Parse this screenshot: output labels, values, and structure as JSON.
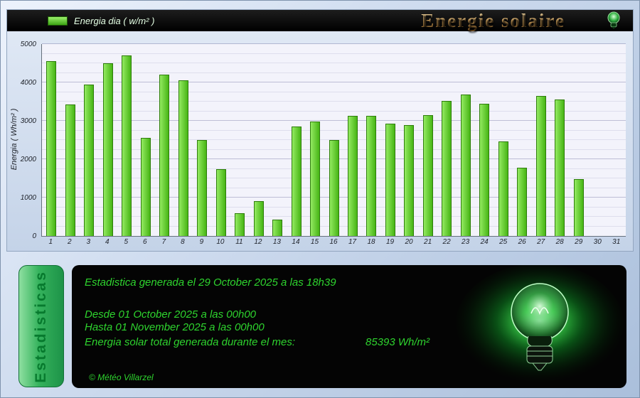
{
  "header": {
    "legend_label": "Energia dia ( w/m² )",
    "title": "Energie solaire"
  },
  "chart_data": {
    "type": "bar",
    "title": "Energia dia ( w/m² )",
    "xlabel": "",
    "ylabel": "Energia ( Wh/m² )",
    "ylim": [
      0,
      5000
    ],
    "ytick_interval": 1000,
    "grid": "horizontal",
    "legend_position": "top-left",
    "categories": [
      "1",
      "2",
      "3",
      "4",
      "5",
      "6",
      "7",
      "8",
      "9",
      "10",
      "11",
      "12",
      "13",
      "14",
      "15",
      "16",
      "17",
      "18",
      "19",
      "20",
      "21",
      "22",
      "23",
      "24",
      "25",
      "26",
      "27",
      "28",
      "29",
      "30",
      "31"
    ],
    "values": [
      4550,
      3420,
      3950,
      4500,
      4700,
      2550,
      4200,
      4050,
      2500,
      1750,
      600,
      900,
      430,
      2850,
      2980,
      2500,
      3130,
      3130,
      2930,
      2890,
      3150,
      3520,
      3680,
      3450,
      2470,
      1780,
      3650,
      3560,
      1480,
      0,
      0
    ]
  },
  "stats_panel": {
    "tab_label": "Estadisticas",
    "generated_line": "Estadistica generada el 29 October 2025 a las 18h39",
    "from_line": "Desde 01 October 2025 a las 00h00",
    "to_line": "Hasta 01 November 2025 a las 00h00",
    "total_label": "Energia solar total generada durante el mes:",
    "total_value": "85393 Wh/m²",
    "copyright": "© Météo Villarzel"
  },
  "colors": {
    "bar_fill_light": "#93ea61",
    "bar_fill_dark": "#47b515",
    "bar_border": "#2e7d0b",
    "accent_green": "#2ed42e",
    "title_gold": "#cfa15c",
    "panel_black": "#040404"
  }
}
